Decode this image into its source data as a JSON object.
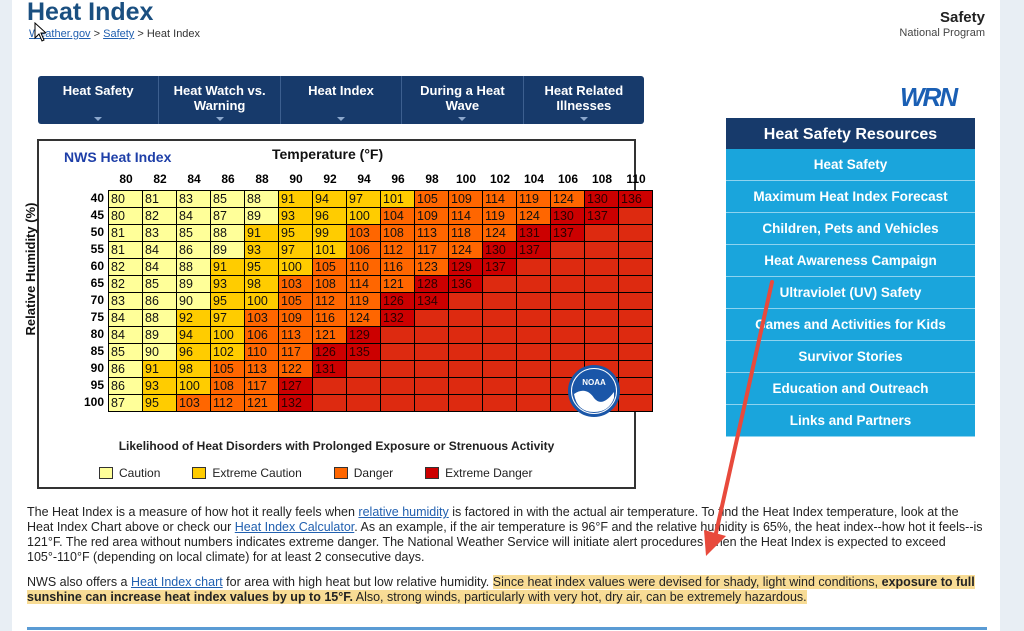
{
  "header": {
    "title": "Heat Index",
    "breadcrumb": {
      "home": "Weather.gov",
      "sep1": " > ",
      "section": "Safety",
      "sep2": " > ",
      "current": "Heat Index"
    },
    "program_title": "Safety",
    "program_subtitle": "National Program"
  },
  "tabs": [
    {
      "label": "Heat Safety"
    },
    {
      "label": "Heat Watch vs. Warning"
    },
    {
      "label": "Heat Index"
    },
    {
      "label": "During a Heat Wave"
    },
    {
      "label": "Heat Related Illnesses"
    }
  ],
  "chart_data": {
    "type": "heatmap",
    "title": "NWS Heat Index",
    "xlabel": "Temperature (°F)",
    "ylabel": "Relative Humidity (%)",
    "temperatures": [
      80,
      82,
      84,
      86,
      88,
      90,
      92,
      94,
      96,
      98,
      100,
      102,
      104,
      106,
      108,
      110
    ],
    "humidities": [
      40,
      45,
      50,
      55,
      60,
      65,
      70,
      75,
      80,
      85,
      90,
      95,
      100
    ],
    "values": [
      [
        80,
        81,
        83,
        85,
        88,
        91,
        94,
        97,
        101,
        105,
        109,
        114,
        119,
        124,
        130,
        136
      ],
      [
        80,
        82,
        84,
        87,
        89,
        93,
        96,
        100,
        104,
        109,
        114,
        119,
        124,
        130,
        137,
        null
      ],
      [
        81,
        83,
        85,
        88,
        91,
        95,
        99,
        103,
        108,
        113,
        118,
        124,
        131,
        137,
        null,
        null
      ],
      [
        81,
        84,
        86,
        89,
        93,
        97,
        101,
        106,
        112,
        117,
        124,
        130,
        137,
        null,
        null,
        null
      ],
      [
        82,
        84,
        88,
        91,
        95,
        100,
        105,
        110,
        116,
        123,
        129,
        137,
        null,
        null,
        null,
        null
      ],
      [
        82,
        85,
        89,
        93,
        98,
        103,
        108,
        114,
        121,
        128,
        136,
        null,
        null,
        null,
        null,
        null
      ],
      [
        83,
        86,
        90,
        95,
        100,
        105,
        112,
        119,
        126,
        134,
        null,
        null,
        null,
        null,
        null,
        null
      ],
      [
        84,
        88,
        92,
        97,
        103,
        109,
        116,
        124,
        132,
        null,
        null,
        null,
        null,
        null,
        null,
        null
      ],
      [
        84,
        89,
        94,
        100,
        106,
        113,
        121,
        129,
        null,
        null,
        null,
        null,
        null,
        null,
        null,
        null
      ],
      [
        85,
        90,
        96,
        102,
        110,
        117,
        126,
        135,
        null,
        null,
        null,
        null,
        null,
        null,
        null,
        null
      ],
      [
        86,
        91,
        98,
        105,
        113,
        122,
        131,
        null,
        null,
        null,
        null,
        null,
        null,
        null,
        null,
        null
      ],
      [
        86,
        93,
        100,
        108,
        117,
        127,
        null,
        null,
        null,
        null,
        null,
        null,
        null,
        null,
        null,
        null
      ],
      [
        87,
        95,
        103,
        112,
        121,
        132,
        null,
        null,
        null,
        null,
        null,
        null,
        null,
        null,
        null,
        null
      ]
    ],
    "caption": "Likelihood of Heat Disorders with Prolonged Exposure or Strenuous Activity",
    "legend": [
      {
        "label": "Caution",
        "color": "#ffff99"
      },
      {
        "label": "Extreme Caution",
        "color": "#ffcc00"
      },
      {
        "label": "Danger",
        "color": "#ff6600"
      },
      {
        "label": "Extreme Danger",
        "color": "#cc0000"
      }
    ],
    "band_colors": {
      "caution": "#ffff99",
      "extreme_caution": "#ffcc00",
      "danger": "#ff6600",
      "extreme_danger": "#cc0000",
      "red_fill": "#dd2a10"
    }
  },
  "sidebar": {
    "title": "Heat Safety Resources",
    "items": [
      {
        "label": "Heat Safety"
      },
      {
        "label": "Maximum Heat Index Forecast"
      },
      {
        "label": "Children, Pets and Vehicles"
      },
      {
        "label": "Heat Awareness Campaign"
      },
      {
        "label": "Ultraviolet (UV) Safety"
      },
      {
        "label": "Games and Activities for Kids"
      },
      {
        "label": "Survivor Stories"
      },
      {
        "label": "Education and Outreach"
      },
      {
        "label": "Links and Partners"
      }
    ]
  },
  "paragraph1": {
    "t1": "The Heat Index is a measure of how hot it really feels when ",
    "link1": "relative humidity",
    "t2": " is factored in with the actual air temperature. To find the Heat Index temperature, look at the Heat Index Chart above or check our ",
    "link2": "Heat Index Calculator",
    "t3": ". As an example, if the air temperature is 96°F and the relative humidity is 65%, the heat index--how hot it feels--is 121°F. The red area without numbers indicates extreme danger. The National Weather Service will initiate alert procedures when the Heat Index is expected to exceed 105°-110°F (depending on local climate) for at least 2 consecutive days."
  },
  "paragraph2": {
    "t1": "NWS also offers a ",
    "link1": "Heat Index chart",
    "t2": " for area with high heat but low relative humidity. ",
    "h1": "Since heat index values were devised for shady, light wind conditions, ",
    "bold": "exposure to full sunshine can increase heat index values by up to 15°F.",
    "h2": " Also, strong winds, particularly with very hot, dry air, can be extremely hazardous."
  },
  "logos": {
    "wrn": "WRN",
    "noaa": "NOAA"
  }
}
